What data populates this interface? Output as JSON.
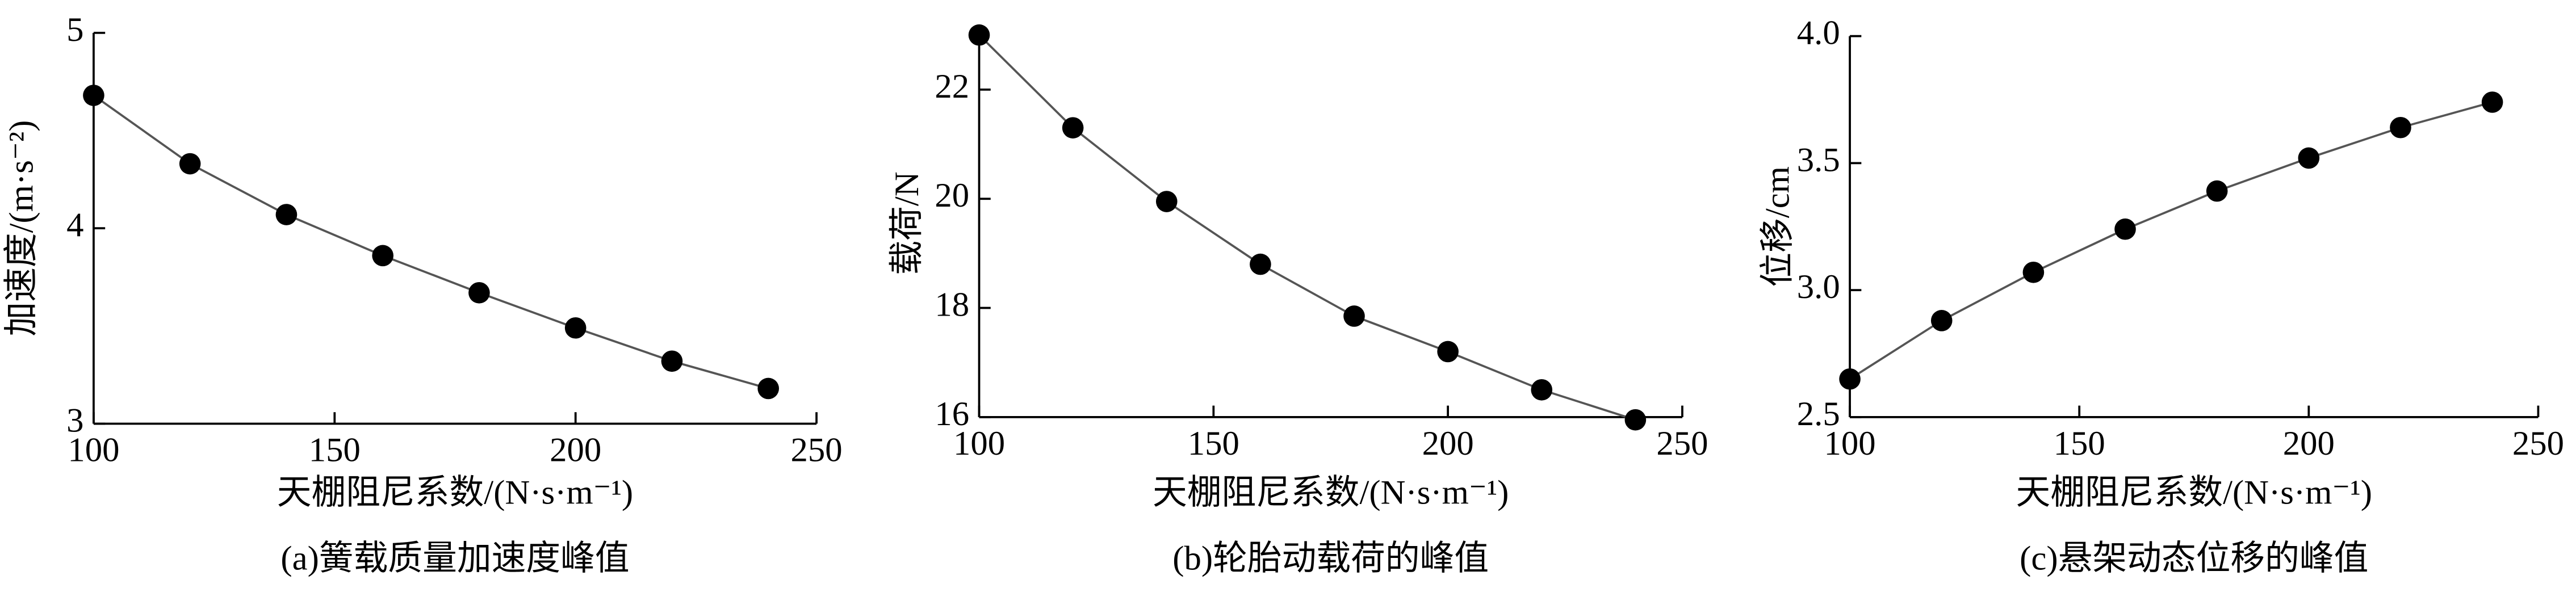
{
  "chart_data": [
    {
      "type": "line",
      "title": "(a)簧载质量加速度峰值",
      "x_label": "天棚阻尼系数/(N·s·m⁻¹)",
      "y_label": "加速度/(m·s⁻²)",
      "x": [
        100,
        120,
        140,
        160,
        180,
        200,
        220,
        240
      ],
      "values": [
        4.68,
        4.33,
        4.07,
        3.86,
        3.67,
        3.49,
        3.32,
        3.18
      ],
      "color": "#555555",
      "marker_color": "#000000",
      "xlim": [
        100,
        250
      ],
      "xticks": [
        100,
        150,
        200,
        250
      ],
      "ylim": [
        3,
        5
      ],
      "yticks": [
        3,
        4,
        5
      ]
    },
    {
      "type": "line",
      "title": "(b)轮胎动载荷的峰值",
      "x_label": "天棚阻尼系数/(N·s·m⁻¹)",
      "y_label": "载荷/N",
      "x": [
        100,
        120,
        140,
        160,
        180,
        200,
        220,
        240
      ],
      "values": [
        23.0,
        21.3,
        19.95,
        18.8,
        17.85,
        17.2,
        16.5,
        15.95
      ],
      "color": "#555555",
      "marker_color": "#000000",
      "xlim": [
        100,
        250
      ],
      "xticks": [
        100,
        150,
        200,
        250
      ],
      "ylim": [
        16,
        23.1
      ],
      "yticks": [
        16,
        18,
        20,
        22
      ]
    },
    {
      "type": "line",
      "title": "(c)悬架动态位移的峰值",
      "x_label": "天棚阻尼系数/(N·s·m⁻¹)",
      "y_label": "位移/cm",
      "x": [
        100,
        120,
        140,
        160,
        180,
        200,
        220,
        240
      ],
      "values": [
        2.65,
        2.88,
        3.07,
        3.24,
        3.39,
        3.52,
        3.64,
        3.74
      ],
      "color": "#555555",
      "marker_color": "#000000",
      "xlim": [
        100,
        250
      ],
      "xticks": [
        100,
        150,
        200,
        250
      ],
      "ylim": [
        2.5,
        4.0
      ],
      "yticks": [
        2.5,
        {
          "value": 3,
          "label": "3.0"
        },
        3.5,
        {
          "value": 4,
          "label": "4.0"
        }
      ]
    }
  ]
}
